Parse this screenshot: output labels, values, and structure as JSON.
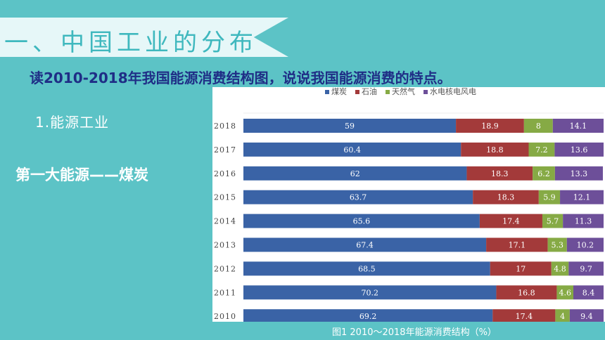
{
  "slide": {
    "title": "一、中国工业的分布",
    "question": "读2010-2018年我国能源消费结构图，说说我国能源消费的特点。",
    "section_heading": "1.能源工业",
    "highlight": "第一大能源——煤炭",
    "caption": "图1 2010～2018年能源消费结构（%）"
  },
  "colors": {
    "background": "#5cc3c6",
    "banner": "#e6f7f8",
    "title_text": "#3fb8be",
    "question_text": "#1f2e86"
  },
  "chart_data": {
    "type": "bar",
    "orientation": "horizontal",
    "stacked": true,
    "unit": "%",
    "categories": [
      "2018",
      "2017",
      "2016",
      "2015",
      "2014",
      "2013",
      "2012",
      "2011",
      "2010"
    ],
    "series": [
      {
        "name": "煤炭",
        "color": "#3a63a6",
        "values": [
          59,
          60.4,
          62,
          63.7,
          65.6,
          67.4,
          68.5,
          70.2,
          69.2
        ]
      },
      {
        "name": "石油",
        "color": "#a33a3a",
        "values": [
          18.9,
          18.8,
          18.3,
          18.3,
          17.4,
          17.1,
          17,
          16.8,
          17.4
        ]
      },
      {
        "name": "天然气",
        "color": "#86aa45",
        "values": [
          8,
          7.2,
          6.2,
          5.9,
          5.7,
          5.3,
          4.8,
          4.6,
          4
        ]
      },
      {
        "name": "水电核电风电",
        "color": "#6d4f99",
        "values": [
          14.1,
          13.6,
          13.3,
          12.1,
          11.3,
          10.2,
          9.7,
          8.4,
          9.4
        ]
      }
    ],
    "legend_position": "top",
    "xlim": [
      0,
      100
    ]
  }
}
